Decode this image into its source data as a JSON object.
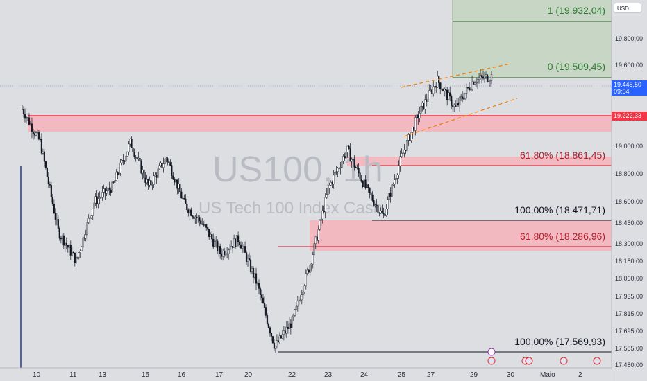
{
  "symbol": {
    "ticker": "US100, 1h",
    "name": "US Tech 100 Index Cash"
  },
  "currency": "USD",
  "price": {
    "last": "19.445,50",
    "countdown": "09:04",
    "marked_level": "19.222,33"
  },
  "levels": [
    {
      "label": "1 (19.932,04)",
      "value": 19932.04,
      "color": "#2e7d32"
    },
    {
      "label": "0 (19.509,45)",
      "value": 19509.45,
      "color": "#2e7d32"
    },
    {
      "label": "61,80% (18.861,45)",
      "value": 18861.45,
      "color": "#b71c2c"
    },
    {
      "label": "100,00% (18.471,71)",
      "value": 18471.71,
      "color": "#131722"
    },
    {
      "label": "61,80% (18.286,96)",
      "value": 18286.96,
      "color": "#b71c2c"
    },
    {
      "label": "100,00% (17.569,93)",
      "value": 17569.93,
      "color": "#131722"
    }
  ],
  "y_axis": {
    "ticks": [
      "19.800,00",
      "19.600,00",
      "19.000,00",
      "18.800,00",
      "18.600,00",
      "18.450,00",
      "18.300,00",
      "18.180,00",
      "18.060,00",
      "17.935,00",
      "17.815,00",
      "17.695,00",
      "17.585,00",
      "17.480,00"
    ]
  },
  "x_axis": {
    "ticks": [
      "10",
      "11",
      "13",
      "15",
      "16",
      "17",
      "20",
      "22",
      "23",
      "24",
      "25",
      "27",
      "29",
      "30",
      "Maio",
      "2"
    ]
  },
  "chart_data": {
    "type": "candlestick",
    "title": "US100, 1h",
    "subtitle": "US Tech 100 Index Cash",
    "ylim": [
      17480,
      19960
    ],
    "zones": [
      {
        "kind": "resistance",
        "from": 19110,
        "to": 19260,
        "color": "#f23645"
      },
      {
        "kind": "retracement",
        "from": 18850,
        "to": 18920,
        "color": "#f23645"
      },
      {
        "kind": "retracement",
        "from": 18250,
        "to": 18470,
        "color": "#f23645"
      },
      {
        "kind": "target",
        "from": 19509.45,
        "to": 19960,
        "color": "#4caf50"
      }
    ],
    "price_path": [
      [
        "10",
        19225
      ],
      [
        "10",
        19000
      ],
      [
        "10",
        18400
      ],
      [
        "11",
        18200
      ],
      [
        "11",
        18600
      ],
      [
        "13",
        18700
      ],
      [
        "13",
        19000
      ],
      [
        "15",
        18700
      ],
      [
        "15",
        18900
      ],
      [
        "16",
        18580
      ],
      [
        "16",
        18450
      ],
      [
        "17",
        18250
      ],
      [
        "17",
        18350
      ],
      [
        "20",
        18050
      ],
      [
        "20",
        17620
      ],
      [
        "22",
        17800
      ],
      [
        "22",
        18200
      ],
      [
        "23",
        18700
      ],
      [
        "23",
        18950
      ],
      [
        "24",
        18700
      ],
      [
        "24",
        18500
      ],
      [
        "25",
        18900
      ],
      [
        "25",
        19200
      ],
      [
        "27",
        19420
      ],
      [
        "27",
        19230
      ],
      [
        "29",
        19420
      ],
      [
        "29",
        19445.5
      ]
    ]
  }
}
